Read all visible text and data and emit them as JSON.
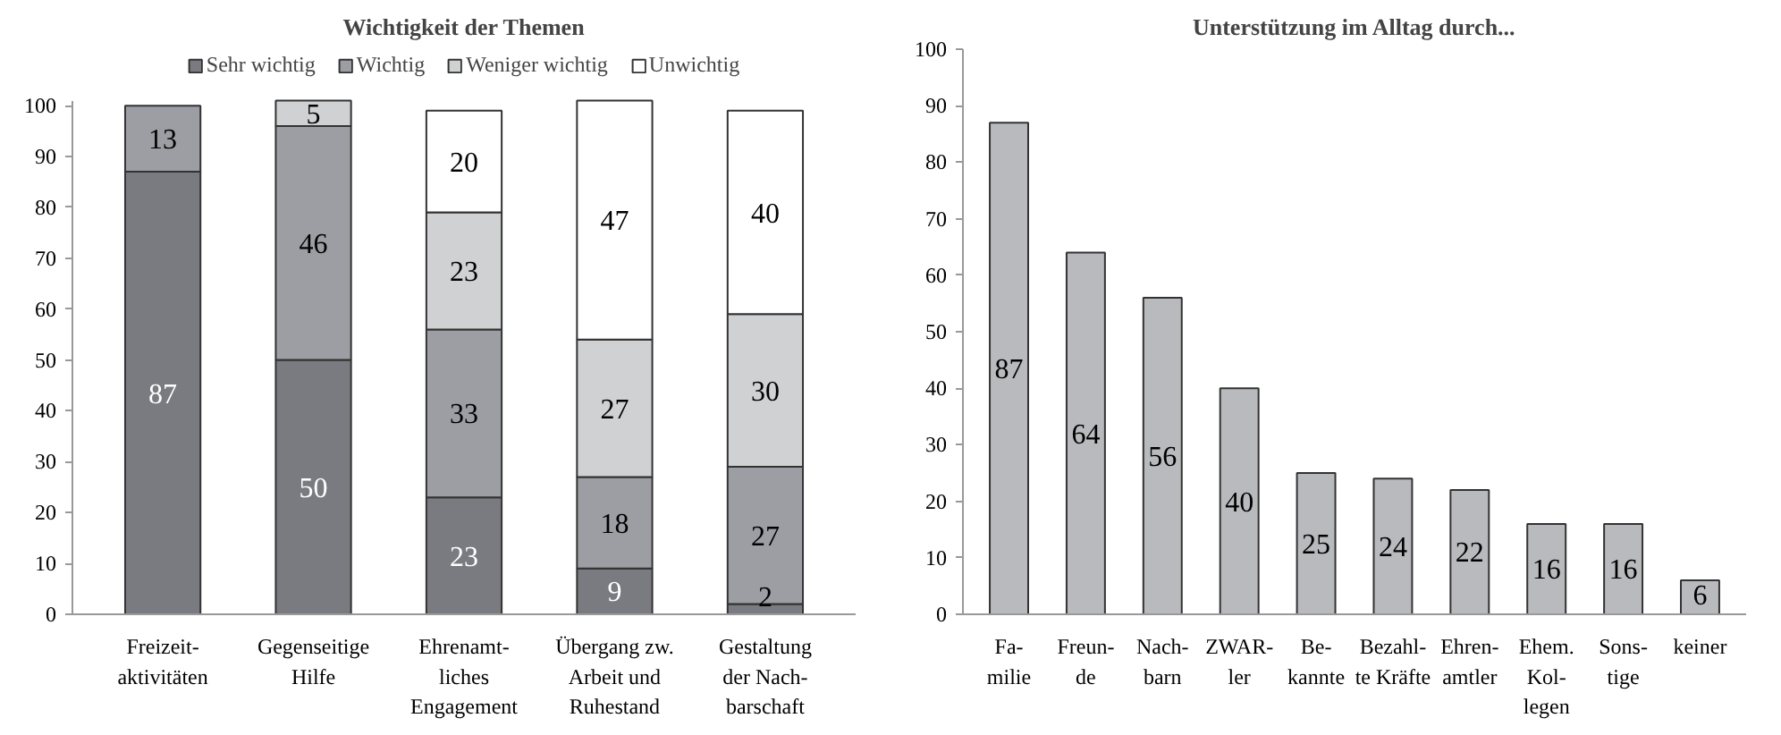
{
  "chart_data": [
    {
      "type": "bar",
      "title": "Wichtigkeit der Themen",
      "stacked": true,
      "legend": "top",
      "data_labels": true,
      "categories": [
        "Freizeit-\naktivitäten",
        "Gegenseitige\nHilfe",
        "Ehrenamt-\nliches\nEngagement",
        "Übergang zw.\nArbeit und\nRuhestand",
        "Gestaltung\nder Nach-\nbarschaft"
      ],
      "ylim": [
        0,
        101
      ],
      "yticks": [
        0,
        10,
        20,
        30,
        40,
        50,
        60,
        70,
        80,
        90,
        100
      ],
      "series": [
        {
          "name": "Sehr wichtig",
          "color": "#7a7b80",
          "values": [
            87,
            50,
            23,
            9,
            2
          ]
        },
        {
          "name": "Wichtig",
          "color": "#9d9ea3",
          "values": [
            13,
            46,
            33,
            18,
            27
          ]
        },
        {
          "name": "Weniger wichtig",
          "color": "#d0d1d3",
          "values": [
            null,
            5,
            23,
            27,
            30
          ]
        },
        {
          "name": "Unwichtig",
          "color": "#ffffff",
          "values": [
            null,
            null,
            20,
            47,
            40
          ]
        }
      ]
    },
    {
      "type": "bar",
      "title": "Unterstützung im Alltag durch...",
      "data_labels": true,
      "categories": [
        "Fa-\nmilie",
        "Freun-\nde",
        "Nach-\nbarn",
        "ZWAR-\nler",
        "Be-\nkannte",
        "Bezahl-\nte Kräfte",
        "Ehren-\namtler",
        "Ehem.\nKol-\nlegen",
        "Sons-\ntige",
        "keiner"
      ],
      "ylim": [
        0,
        100
      ],
      "yticks": [
        0,
        10,
        20,
        30,
        40,
        50,
        60,
        70,
        80,
        90,
        100
      ],
      "color": "#b9babd",
      "values": [
        87,
        64,
        56,
        40,
        25,
        24,
        22,
        16,
        16,
        6
      ]
    }
  ]
}
